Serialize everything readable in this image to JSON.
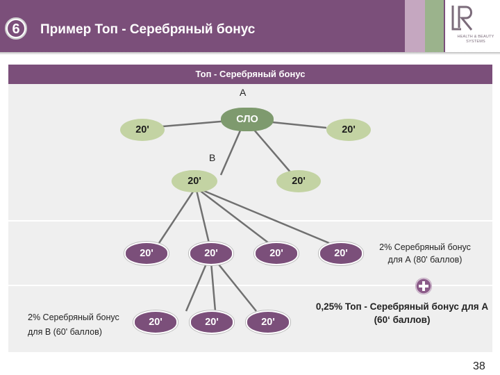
{
  "header": {
    "slide_number": "6",
    "title": "Пример Топ - Серебряный бонус",
    "logo_text": "HEALTH & BEAUTY SYSTEMS",
    "colors": {
      "purple": "#7b4f7a",
      "green_light": "#c3d3a3",
      "green_dark": "#7e9a6e",
      "stripe_green": "#9bb38c"
    }
  },
  "diagram": {
    "band_title": "Топ - Серебряный бонус",
    "label_a": "A",
    "label_b": "B",
    "nodes": {
      "root": "СЛО",
      "lvl1_left": "20'",
      "lvl1_right": "20'",
      "b": "20'",
      "lvl2_right": "20'",
      "row3": [
        "20'",
        "20'",
        "20'",
        "20'"
      ],
      "row4": [
        "20'",
        "20'",
        "20'"
      ]
    },
    "notes": {
      "silver_a": "2% Серебряный бонус для А (80' баллов)",
      "silver_b_line1": "2% Серебряный бонус",
      "silver_b_line2": "для  В (60' баллов)",
      "top_silver": "0,25% Топ - Серебряный бонус для А (60‘ баллов)"
    },
    "plus_icon": "plus-icon"
  },
  "footer": {
    "page_number": "38"
  }
}
